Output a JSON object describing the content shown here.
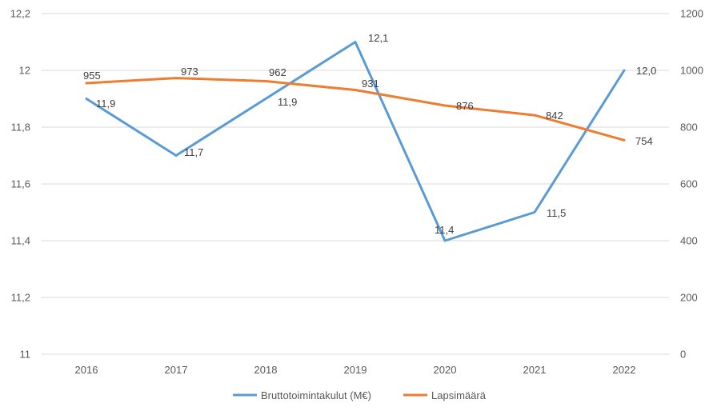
{
  "chart_data": {
    "type": "line",
    "title": "",
    "xlabel": "",
    "ylabel": "",
    "categories": [
      "2016",
      "2017",
      "2018",
      "2019",
      "2020",
      "2021",
      "2022"
    ],
    "y_left": {
      "range": [
        11,
        12.2
      ],
      "ticks": [
        11,
        11.2,
        11.4,
        11.6,
        11.8,
        12,
        12.2
      ],
      "tick_labels": [
        "11",
        "11,2",
        "11,4",
        "11,6",
        "11,8",
        "12",
        "12,2"
      ]
    },
    "y_right": {
      "range": [
        0,
        1200
      ],
      "ticks": [
        0,
        200,
        400,
        600,
        800,
        1000,
        1200
      ],
      "tick_labels": [
        "0",
        "200",
        "400",
        "600",
        "800",
        "1000",
        "1200"
      ]
    },
    "grid": true,
    "legend_position": "bottom",
    "series": [
      {
        "name": "Bruttotoimintakulut (M€)",
        "axis": "left",
        "color": "#5b9bd5",
        "values": [
          11.9,
          11.7,
          11.9,
          12.1,
          11.4,
          11.5,
          12.0
        ],
        "labels": [
          "11,9",
          "11,7",
          "11,9",
          "12,1",
          "11,4",
          "11,5",
          "12,0"
        ]
      },
      {
        "name": "Lapsimäärä",
        "axis": "right",
        "color": "#ed7d31",
        "values": [
          955,
          973,
          962,
          931,
          876,
          842,
          754
        ],
        "labels": [
          "955",
          "973",
          "962",
          "931",
          "876",
          "842",
          "754"
        ]
      }
    ]
  }
}
